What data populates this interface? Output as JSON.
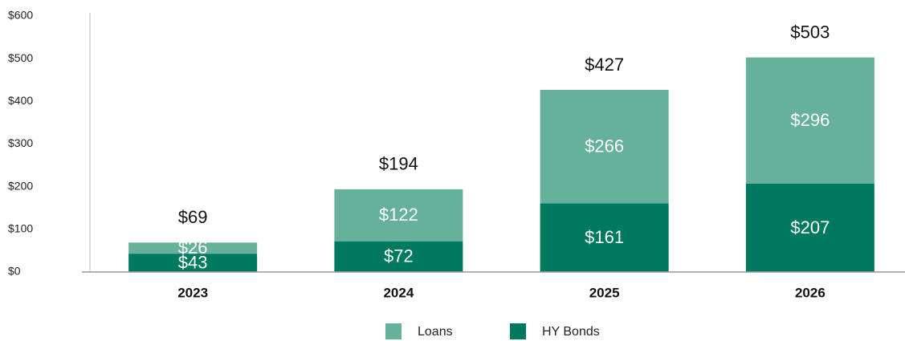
{
  "chart_data": {
    "type": "stacked_bar",
    "categories": [
      "2023",
      "2024",
      "2025",
      "2026"
    ],
    "series": [
      {
        "name": "HY Bonds",
        "color": "#007a5e",
        "values": [
          43,
          72,
          161,
          207
        ],
        "value_labels": [
          "$43",
          "$72",
          "$161",
          "$207"
        ]
      },
      {
        "name": "Loans",
        "color": "#66b19a",
        "values": [
          26,
          122,
          266,
          296
        ],
        "value_labels": [
          "$26",
          "$122",
          "$266",
          "$296"
        ]
      }
    ],
    "totals": [
      69,
      194,
      427,
      503
    ],
    "total_labels": [
      "$69",
      "$194",
      "$427",
      "$503"
    ],
    "ylim": [
      0,
      600
    ],
    "yticks": [
      {
        "value": 0,
        "label": "$0"
      },
      {
        "value": 100,
        "label": "$100"
      },
      {
        "value": 200,
        "label": "$200"
      },
      {
        "value": 300,
        "label": "$300"
      },
      {
        "value": 400,
        "label": "$400"
      },
      {
        "value": 500,
        "label": "$500"
      },
      {
        "value": 600,
        "label": "$600"
      }
    ],
    "legend_order": [
      "Loans",
      "HY Bonds"
    ]
  }
}
